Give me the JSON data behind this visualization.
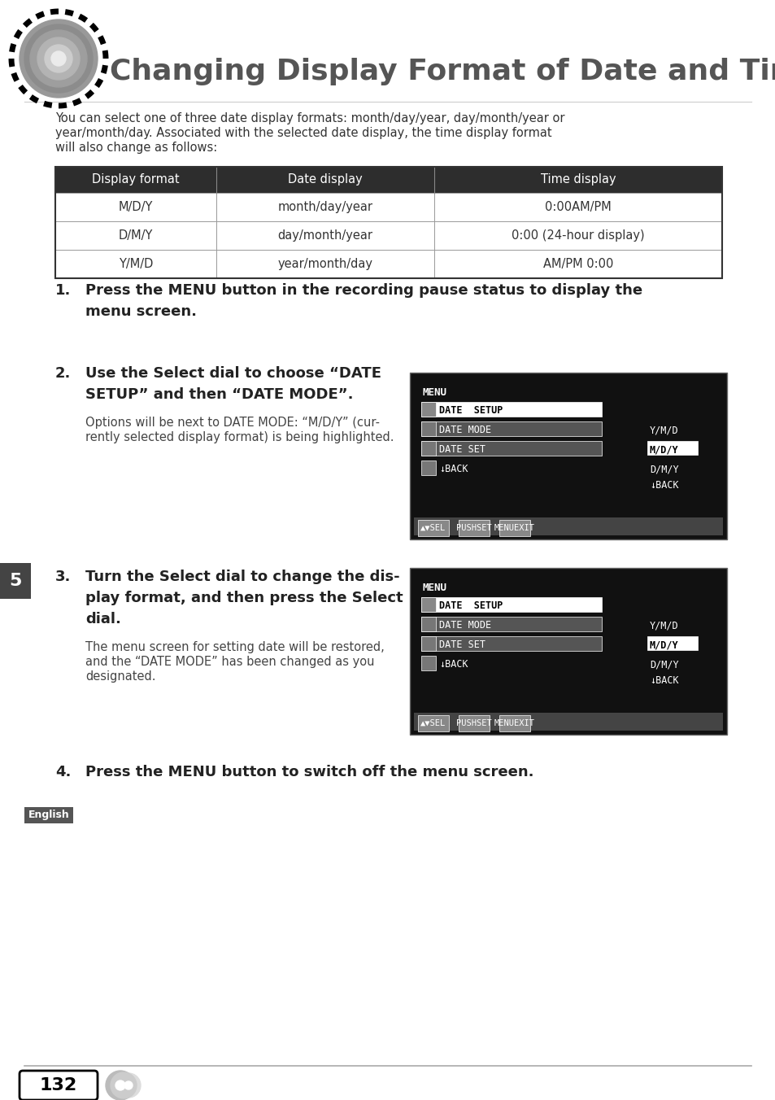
{
  "title": "Changing Display Format of Date and Time",
  "bg_color": "#ffffff",
  "intro_text_lines": [
    "You can select one of three date display formats: month/day/year, day/month/year or",
    "year/month/day. Associated with the selected date display, the time display format",
    "will also change as follows:"
  ],
  "table_headers": [
    "Display format",
    "Date display",
    "Time display"
  ],
  "table_rows": [
    [
      "M/D/Y",
      "month/day/year",
      "0:00AM/PM"
    ],
    [
      "D/M/Y",
      "day/month/year",
      "0:00 (24-hour display)"
    ],
    [
      "Y/M/D",
      "year/month/day",
      "AM/PM 0:00"
    ]
  ],
  "step1_text": "Press the MENU button in the recording pause status to display the\nmenu screen.",
  "step2_bold": "Use the Select dial to choose “DATE\nSETUP” and then “DATE MODE”.",
  "step2_normal": "Options will be next to DATE MODE: “M/D/Y” (cur-\nrently selected display format) is being highlighted.",
  "step3_bold": "Turn the Select dial to change the dis-\nplay format, and then press the Select\ndial.",
  "step3_normal": "The menu screen for setting date will be restored,\nand the “DATE MODE” has been changed as you\ndesignated.",
  "step4_text": "Press the MENU button to switch off the menu screen.",
  "footer_label": "English",
  "page_number": "132",
  "section_number": "5",
  "title_color": "#555555",
  "text_color": "#222222",
  "light_text": "#444444",
  "header_bg": "#2d2d2d",
  "table_border": "#555555"
}
